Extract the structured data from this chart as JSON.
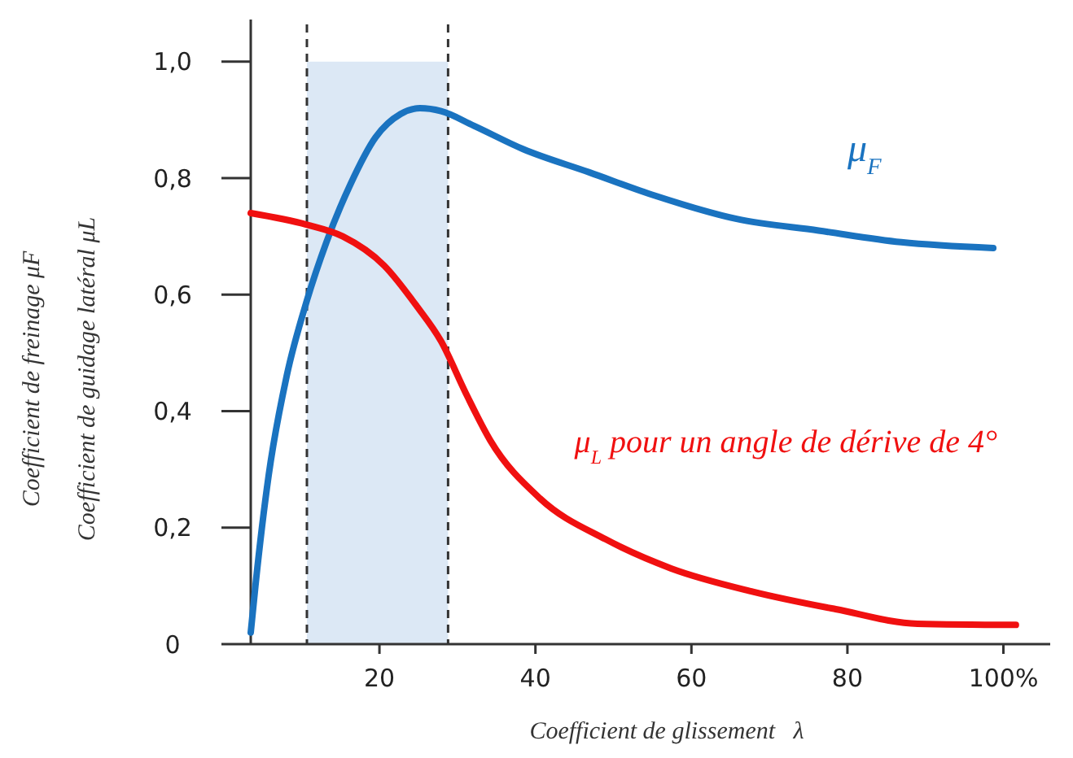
{
  "chart_data": {
    "type": "line",
    "xlabel": "Coefficient de glissement   λ",
    "ylabel": "Coefficient de freinage μF\nCoefficient de guidage latéral μL",
    "xlim": [
      3.5,
      106
    ],
    "ylim": [
      0,
      1.05
    ],
    "xticks": [
      20,
      40,
      60,
      80,
      {
        "value": 100,
        "label": "100%"
      }
    ],
    "yticks": [
      0,
      {
        "value": 0.2,
        "label": "0,2"
      },
      {
        "value": 0.4,
        "label": "0,4"
      },
      {
        "value": 0.6,
        "label": "0,6"
      },
      {
        "value": 0.8,
        "label": "0,8"
      },
      {
        "value": 1,
        "label": "1,0"
      }
    ],
    "grid": false,
    "line_style": "solid",
    "bands": [
      {
        "axis": "x",
        "from": 10.7,
        "to": 28.8,
        "color": "#dce8f5"
      }
    ],
    "ref_lines": [
      {
        "axis": "x",
        "value": 10.7,
        "line_style": "dashed",
        "color": "#333333"
      },
      {
        "axis": "x",
        "value": 28.8,
        "line_style": "dashed",
        "color": "#333333"
      }
    ],
    "series": [
      {
        "name": "μ$_{F}$",
        "color": "#1a73c0",
        "x": [
          3.5,
          4.1,
          5.8,
          8.1,
          10.7,
          13.2,
          16.3,
          19.5,
          22.7,
          25.2,
          27.9,
          32.1,
          38.4,
          46.9,
          55.3,
          65.8,
          76.3,
          86.9,
          98.7
        ],
        "values": [
          0.02,
          0.1,
          0.29,
          0.46,
          0.59,
          0.69,
          0.79,
          0.87,
          0.91,
          0.92,
          0.915,
          0.89,
          0.85,
          0.81,
          0.77,
          0.73,
          0.71,
          0.69,
          0.68
        ]
      },
      {
        "name": "μ$_{L}$ pour un angle de dérive de 4°",
        "color": "#f01010",
        "x": [
          3.5,
          10.7,
          15.3,
          20.6,
          24.8,
          27.9,
          31.1,
          34.2,
          40.6,
          49,
          57.4,
          67.9,
          78.5,
          89,
          101.6
        ],
        "values": [
          0.74,
          0.72,
          0.7,
          0.65,
          0.58,
          0.52,
          0.43,
          0.35,
          0.25,
          0.18,
          0.13,
          0.09,
          0.06,
          0.035,
          0.033
        ]
      }
    ]
  }
}
